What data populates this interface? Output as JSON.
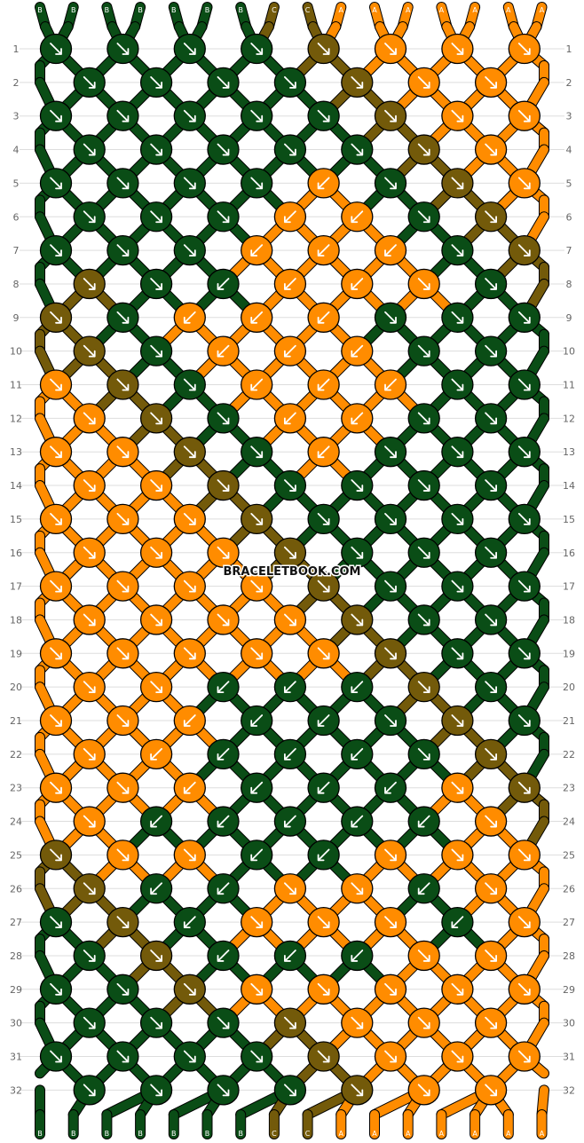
{
  "pattern": {
    "watermark": "BRACELETBOOK.COM",
    "rows": 32,
    "top_strands": [
      "B",
      "B",
      "B",
      "B",
      "B",
      "B",
      "B",
      "C",
      "C",
      "A",
      "A",
      "A",
      "A",
      "A",
      "A",
      "A"
    ],
    "bottom_strands": [
      "B",
      "B",
      "B",
      "B",
      "B",
      "B",
      "B",
      "C",
      "C",
      "A",
      "A",
      "A",
      "A",
      "A",
      "A",
      "A"
    ],
    "colors": {
      "A": "#ff8c00",
      "B": "#0a4d16",
      "C": "#735a0a"
    },
    "grid": [
      "BBBBCAAA",
      "BBBBCAA",
      "BBBBBCAA",
      "BBBBBCA",
      "BBBBABCA",
      "BBBAABC",
      "BBBAAABC",
      "CBBAAAB",
      "CBAAABBB",
      "CBAAABB",
      "ACBAAABB",
      "ACBAABB",
      "AACBABBB",
      "AACBBBB",
      "AAACBBBB",
      "AAACBBB",
      "AAAACBBB",
      "AAAACBB",
      "AAAAACBB",
      "AABBBCB",
      "AAABBBCB",
      "AABBBBC",
      "AAABBBAC",
      "ABBBBBA",
      "CAABBAAA",
      "CBBAABA",
      "BCBAAABA",
      "BCBBBAA",
      "BBCAAAAA",
      "BBBCAAA",
      "BBBBCAAA",
      "BBBBCAA"
    ],
    "arrows": [
      "RRRRRRRR",
      "RRRRRRR",
      "RRRRRRRR",
      "RRRRRRR",
      "RRRRLRRR",
      "RRRLLRR",
      "RRRLLLRR",
      "RRLLLRR",
      "RRLLLRRR",
      "RRLLLRR",
      "RRRLLLRR",
      "RRRLLRR",
      "RRRRLRRR",
      "RRRRRRR",
      "RRRRRRRR",
      "RRRRRRR",
      "RRRRRRRR",
      "RRRRRRR",
      "RRRRRRRR",
      "RRLLLRR",
      "RRLLLRRR",
      "RLLLLRR",
      "RRLLLLRR",
      "RLLLLLR",
      "RRRLLRRR",
      "RLLRRLR",
      "RRLRRRLR",
      "RRLLLRR",
      "RRRRRRRR",
      "RRRRRRR",
      "RRRRRRRR",
      "RRRRRRR"
    ],
    "row_labels": [
      "1",
      "2",
      "3",
      "4",
      "5",
      "6",
      "7",
      "8",
      "9",
      "10",
      "11",
      "12",
      "13",
      "14",
      "15",
      "16",
      "17",
      "18",
      "19",
      "20",
      "21",
      "22",
      "23",
      "24",
      "25",
      "26",
      "27",
      "28",
      "29",
      "30",
      "31",
      "32"
    ]
  }
}
